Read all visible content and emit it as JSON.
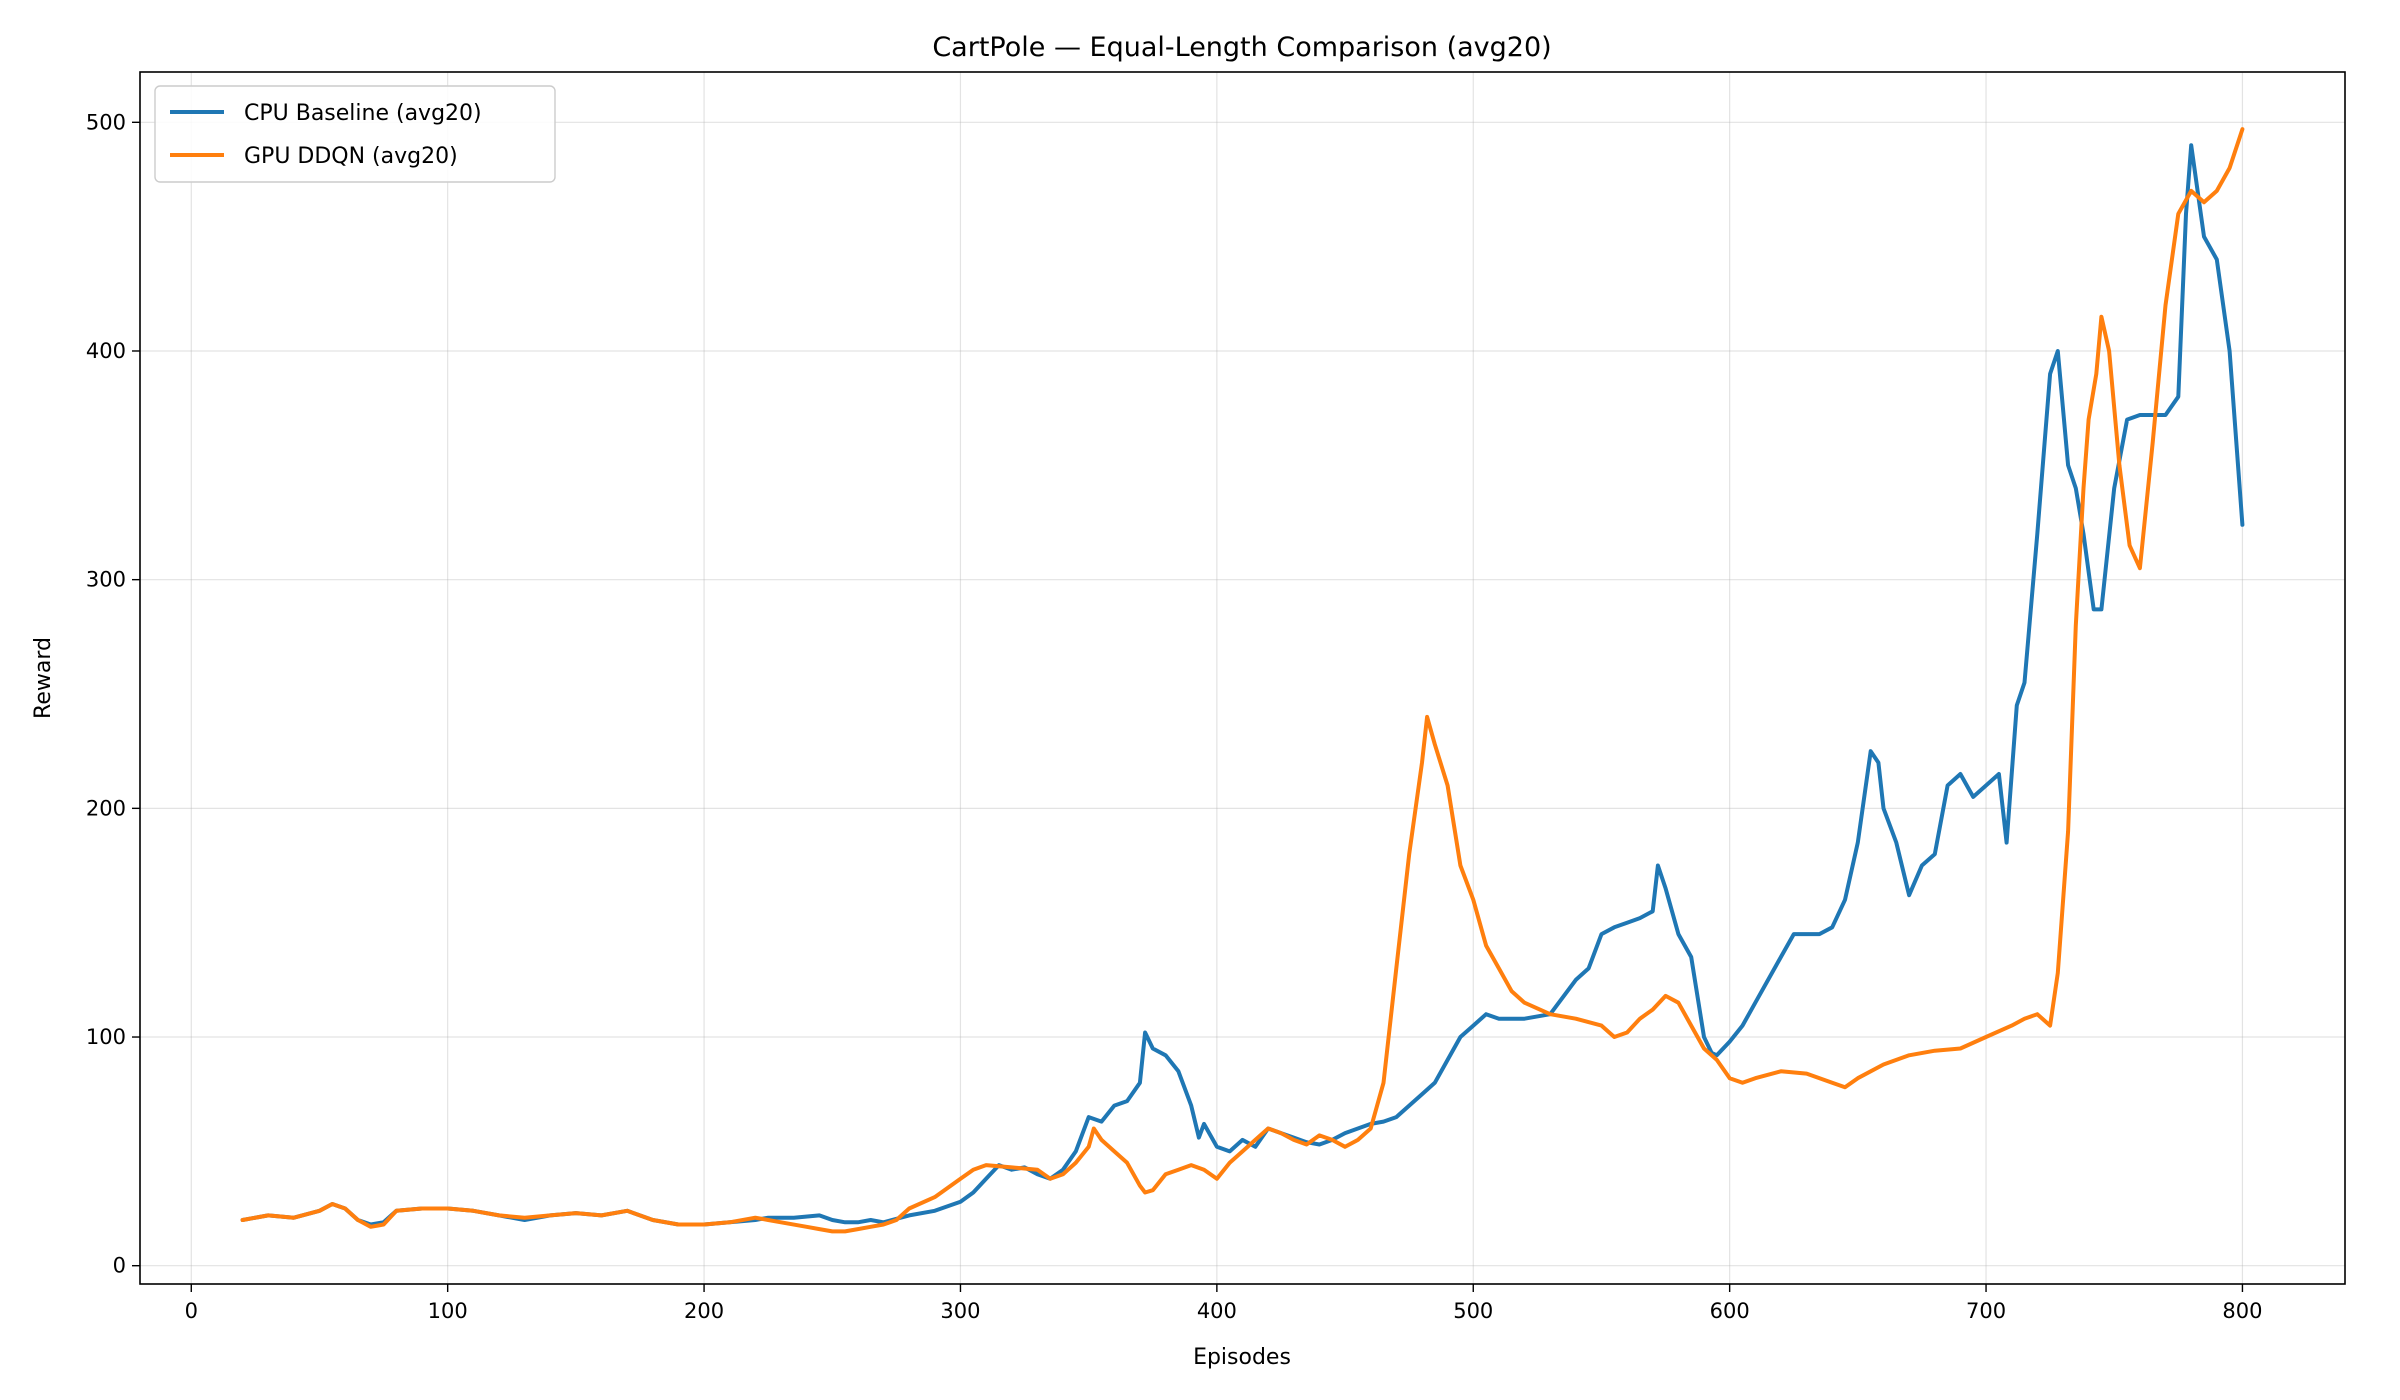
{
  "chart_data": {
    "type": "line",
    "title": "CartPole — Equal-Length Comparison (avg20)",
    "xlabel": "Episodes",
    "ylabel": "Reward",
    "xlim": [
      -20,
      840
    ],
    "ylim": [
      -8,
      522
    ],
    "xticks": [
      0,
      100,
      200,
      300,
      400,
      500,
      600,
      700,
      800
    ],
    "yticks": [
      0,
      100,
      200,
      300,
      400,
      500
    ],
    "grid": true,
    "legend": "top-left",
    "series": [
      {
        "name": "CPU Baseline (avg20)",
        "color": "#1f77b4",
        "x": [
          20,
          30,
          40,
          50,
          55,
          60,
          65,
          70,
          75,
          80,
          90,
          100,
          110,
          120,
          130,
          140,
          150,
          160,
          170,
          180,
          190,
          200,
          210,
          220,
          225,
          235,
          245,
          250,
          255,
          260,
          265,
          270,
          280,
          290,
          300,
          305,
          310,
          315,
          320,
          325,
          330,
          335,
          340,
          345,
          350,
          355,
          360,
          365,
          370,
          372,
          375,
          380,
          385,
          390,
          393,
          395,
          400,
          405,
          410,
          415,
          420,
          425,
          430,
          435,
          440,
          445,
          450,
          455,
          460,
          465,
          470,
          475,
          480,
          485,
          490,
          495,
          500,
          505,
          510,
          520,
          530,
          540,
          545,
          550,
          555,
          560,
          565,
          570,
          572,
          575,
          580,
          585,
          590,
          593,
          595,
          600,
          605,
          610,
          620,
          625,
          630,
          635,
          640,
          645,
          650,
          655,
          658,
          660,
          665,
          670,
          675,
          680,
          685,
          690,
          695,
          700,
          705,
          708,
          712,
          715,
          720,
          725,
          728,
          732,
          735,
          738,
          742,
          745,
          750,
          755,
          760,
          765,
          770,
          775,
          778,
          780,
          785,
          790,
          795,
          800
        ],
        "values": [
          20,
          22,
          21,
          24,
          27,
          25,
          20,
          18,
          19,
          24,
          25,
          25,
          24,
          22,
          20,
          22,
          23,
          22,
          24,
          20,
          18,
          18,
          19,
          20,
          21,
          21,
          22,
          20,
          19,
          19,
          20,
          19,
          22,
          24,
          28,
          32,
          38,
          44,
          42,
          43,
          40,
          38,
          42,
          50,
          65,
          63,
          70,
          72,
          80,
          102,
          95,
          92,
          85,
          70,
          56,
          62,
          52,
          50,
          55,
          52,
          60,
          58,
          56,
          54,
          53,
          55,
          58,
          60,
          62,
          63,
          65,
          70,
          75,
          80,
          90,
          100,
          105,
          110,
          108,
          108,
          110,
          125,
          130,
          145,
          148,
          150,
          152,
          155,
          175,
          165,
          145,
          135,
          100,
          93,
          92,
          98,
          105,
          115,
          135,
          145,
          145,
          145,
          148,
          160,
          185,
          225,
          220,
          200,
          185,
          162,
          175,
          180,
          210,
          215,
          205,
          210,
          215,
          185,
          245,
          255,
          320,
          390,
          400,
          350,
          340,
          320,
          287,
          287,
          340,
          370,
          372,
          372,
          372,
          380,
          460,
          490,
          450,
          440,
          400,
          324
        ]
      },
      {
        "name": "GPU DDQN (avg20)",
        "color": "#ff7f0e",
        "x": [
          20,
          30,
          40,
          50,
          55,
          60,
          65,
          70,
          75,
          80,
          90,
          100,
          110,
          120,
          130,
          140,
          150,
          160,
          170,
          180,
          190,
          200,
          210,
          220,
          225,
          230,
          240,
          245,
          250,
          255,
          260,
          265,
          270,
          275,
          280,
          290,
          300,
          305,
          310,
          320,
          330,
          335,
          340,
          345,
          350,
          352,
          355,
          360,
          365,
          370,
          372,
          375,
          380,
          385,
          390,
          395,
          400,
          405,
          410,
          415,
          420,
          425,
          430,
          435,
          440,
          445,
          450,
          455,
          460,
          465,
          470,
          475,
          480,
          482,
          485,
          490,
          495,
          500,
          505,
          510,
          515,
          520,
          530,
          540,
          550,
          555,
          560,
          565,
          570,
          575,
          580,
          585,
          590,
          595,
          600,
          605,
          610,
          620,
          630,
          640,
          645,
          650,
          660,
          670,
          680,
          690,
          700,
          710,
          715,
          720,
          725,
          728,
          732,
          735,
          738,
          740,
          743,
          745,
          748,
          752,
          756,
          760,
          765,
          770,
          775,
          780,
          785,
          790,
          795,
          800
        ],
        "values": [
          20,
          22,
          21,
          24,
          27,
          25,
          20,
          17,
          18,
          24,
          25,
          25,
          24,
          22,
          21,
          22,
          23,
          22,
          24,
          20,
          18,
          18,
          19,
          21,
          20,
          19,
          17,
          16,
          15,
          15,
          16,
          17,
          18,
          20,
          25,
          30,
          38,
          42,
          44,
          43,
          42,
          38,
          40,
          45,
          52,
          60,
          55,
          50,
          45,
          35,
          32,
          33,
          40,
          42,
          44,
          42,
          38,
          45,
          50,
          55,
          60,
          58,
          55,
          53,
          57,
          55,
          52,
          55,
          60,
          80,
          130,
          180,
          220,
          240,
          228,
          210,
          175,
          160,
          140,
          130,
          120,
          115,
          110,
          108,
          105,
          100,
          102,
          108,
          112,
          118,
          115,
          105,
          95,
          90,
          82,
          80,
          82,
          85,
          84,
          80,
          78,
          82,
          88,
          92,
          94,
          95,
          100,
          105,
          108,
          110,
          105,
          128,
          190,
          280,
          340,
          370,
          390,
          415,
          400,
          350,
          315,
          305,
          360,
          420,
          460,
          470,
          465,
          470,
          480,
          497
        ]
      }
    ]
  }
}
